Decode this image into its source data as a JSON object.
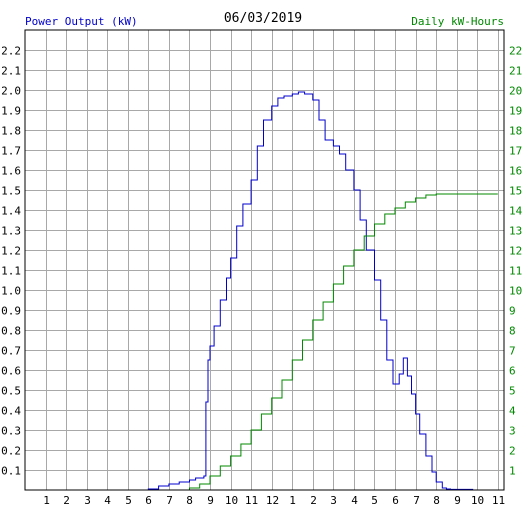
{
  "chart_data": {
    "type": "line",
    "title": "06/03/2019",
    "ylabel_left": "Power Output (kW)",
    "ylabel_right": "Daily kW-Hours",
    "colors": {
      "power": "#0000cc",
      "energy": "#008800",
      "grid": "#a8a8a8",
      "frame": "#000000"
    },
    "grid": true,
    "x_ticks": [
      {
        "h": 1,
        "label": "1"
      },
      {
        "h": 2,
        "label": "2"
      },
      {
        "h": 3,
        "label": "3"
      },
      {
        "h": 4,
        "label": "4"
      },
      {
        "h": 5,
        "label": "5"
      },
      {
        "h": 6,
        "label": "6"
      },
      {
        "h": 7,
        "label": "7"
      },
      {
        "h": 8,
        "label": "8"
      },
      {
        "h": 9,
        "label": "9"
      },
      {
        "h": 10,
        "label": "10"
      },
      {
        "h": 11,
        "label": "11"
      },
      {
        "h": 12,
        "label": "12"
      },
      {
        "h": 13,
        "label": "1"
      },
      {
        "h": 14,
        "label": "2"
      },
      {
        "h": 15,
        "label": "3"
      },
      {
        "h": 16,
        "label": "4"
      },
      {
        "h": 17,
        "label": "5"
      },
      {
        "h": 18,
        "label": "6"
      },
      {
        "h": 19,
        "label": "7"
      },
      {
        "h": 20,
        "label": "8"
      },
      {
        "h": 21,
        "label": "9"
      },
      {
        "h": 22,
        "label": "10"
      },
      {
        "h": 23,
        "label": "11"
      }
    ],
    "xlim": [
      0,
      23.3
    ],
    "ylim_left": [
      0,
      2.3
    ],
    "ylim_right": [
      0,
      23
    ],
    "left_ticks": [
      "0.1",
      "0.2",
      "0.3",
      "0.4",
      "0.5",
      "0.6",
      "0.7",
      "0.8",
      "0.9",
      "1.0",
      "1.1",
      "1.2",
      "1.3",
      "1.4",
      "1.5",
      "1.6",
      "1.7",
      "1.8",
      "1.9",
      "2.0",
      "2.1",
      "2.2"
    ],
    "right_ticks": [
      "1",
      "2",
      "3",
      "4",
      "5",
      "6",
      "7",
      "8",
      "9",
      "10",
      "11",
      "12",
      "13",
      "14",
      "15",
      "16",
      "17",
      "18",
      "19",
      "20",
      "21",
      "22"
    ],
    "series": [
      {
        "id": "power",
        "axis": "left",
        "x": [
          5.9,
          6.0,
          6.5,
          7.0,
          7.5,
          8.0,
          8.3,
          8.7,
          8.8,
          8.9,
          9.0,
          9.2,
          9.5,
          9.8,
          10.0,
          10.3,
          10.6,
          11.0,
          11.3,
          11.6,
          12.0,
          12.3,
          12.6,
          13.0,
          13.3,
          13.6,
          14.0,
          14.3,
          14.6,
          15.0,
          15.3,
          15.6,
          16.0,
          16.3,
          16.6,
          17.0,
          17.3,
          17.6,
          17.9,
          18.2,
          18.4,
          18.6,
          18.8,
          19.0,
          19.2,
          19.5,
          19.8,
          20.0,
          20.3,
          20.5,
          20.7,
          20.9,
          21.3,
          21.8
        ],
        "y": [
          0.0,
          0.005,
          0.02,
          0.03,
          0.04,
          0.05,
          0.06,
          0.07,
          0.44,
          0.65,
          0.72,
          0.82,
          0.95,
          1.06,
          1.16,
          1.32,
          1.43,
          1.55,
          1.72,
          1.85,
          1.92,
          1.96,
          1.97,
          1.98,
          1.99,
          1.98,
          1.95,
          1.85,
          1.75,
          1.72,
          1.68,
          1.6,
          1.5,
          1.35,
          1.2,
          1.05,
          0.85,
          0.65,
          0.53,
          0.58,
          0.66,
          0.57,
          0.48,
          0.38,
          0.28,
          0.17,
          0.09,
          0.04,
          0.01,
          0.005,
          0.003,
          0.003,
          0.003,
          0.003
        ]
      },
      {
        "id": "energy",
        "axis": "right",
        "x": [
          5.9,
          8.0,
          8.5,
          9.0,
          9.5,
          10.0,
          10.5,
          11.0,
          11.5,
          12.0,
          12.5,
          13.0,
          13.5,
          14.0,
          14.5,
          15.0,
          15.5,
          16.0,
          16.5,
          17.0,
          17.5,
          18.0,
          18.5,
          19.0,
          19.5,
          20.0,
          20.5,
          21.0,
          22.0,
          23.0
        ],
        "y": [
          0.0,
          0.1,
          0.3,
          0.7,
          1.2,
          1.7,
          2.3,
          3.0,
          3.8,
          4.6,
          5.5,
          6.5,
          7.5,
          8.5,
          9.4,
          10.3,
          11.2,
          12.0,
          12.7,
          13.3,
          13.8,
          14.1,
          14.4,
          14.6,
          14.75,
          14.8,
          14.8,
          14.8,
          14.8,
          14.8
        ]
      }
    ]
  }
}
